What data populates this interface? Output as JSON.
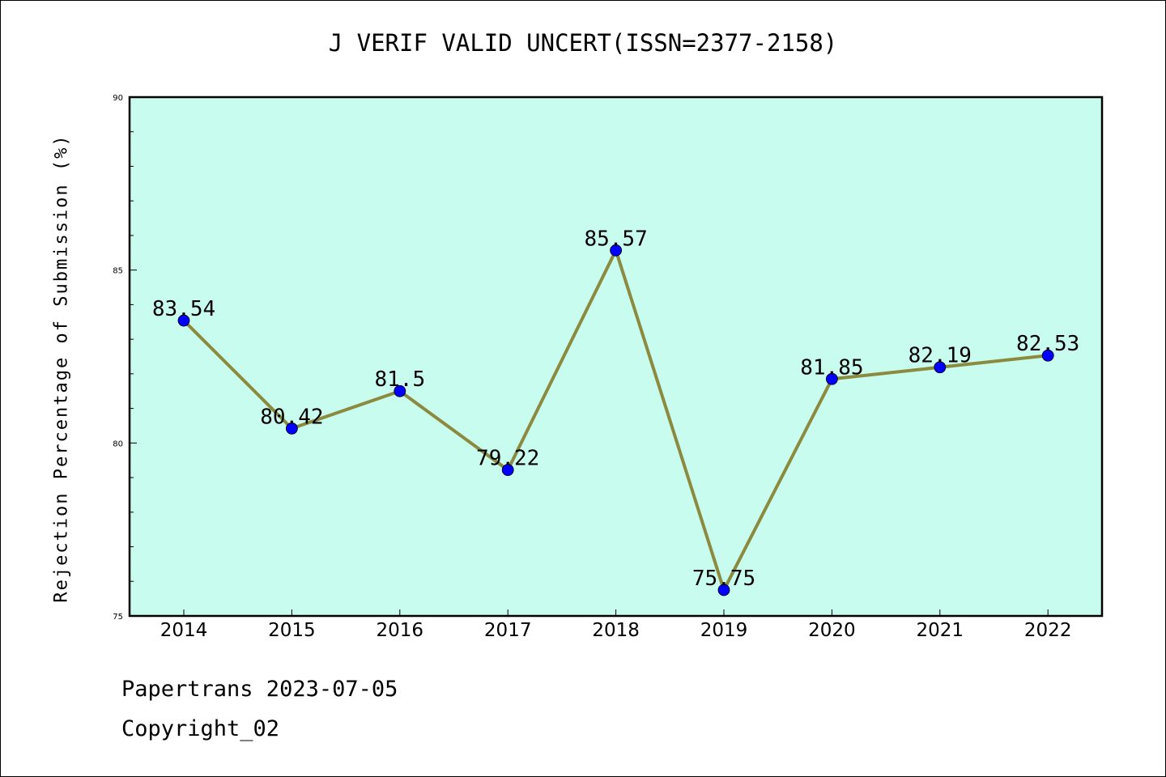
{
  "title": "J VERIF VALID UNCERT(ISSN=2377-2158)",
  "footer": {
    "line1": "Papertrans 2023-07-05",
    "line2": "Copyright_02"
  },
  "colors": {
    "plot_background": "#c8fcee",
    "line": "#8b8a3e",
    "marker": "#0000ff"
  },
  "chart_data": {
    "type": "line",
    "title": "J VERIF VALID UNCERT(ISSN=2377-2158)",
    "xlabel": "",
    "ylabel": "Rejection Percentage of Submission (%)",
    "categories": [
      "2014",
      "2015",
      "2016",
      "2017",
      "2018",
      "2019",
      "2020",
      "2021",
      "2022"
    ],
    "values": [
      83.54,
      80.42,
      81.5,
      79.22,
      85.57,
      75.75,
      81.85,
      82.19,
      82.53
    ],
    "data_labels": [
      "83.54",
      "80.42",
      "81.5",
      "79.22",
      "85.57",
      "75.75",
      "81.85",
      "82.19",
      "82.53"
    ],
    "ylim": [
      75,
      90
    ],
    "y_major_ticks": [
      "75",
      "80",
      "85",
      "90"
    ],
    "y_minor_tick_step": 1,
    "grid": false,
    "legend": "none"
  }
}
